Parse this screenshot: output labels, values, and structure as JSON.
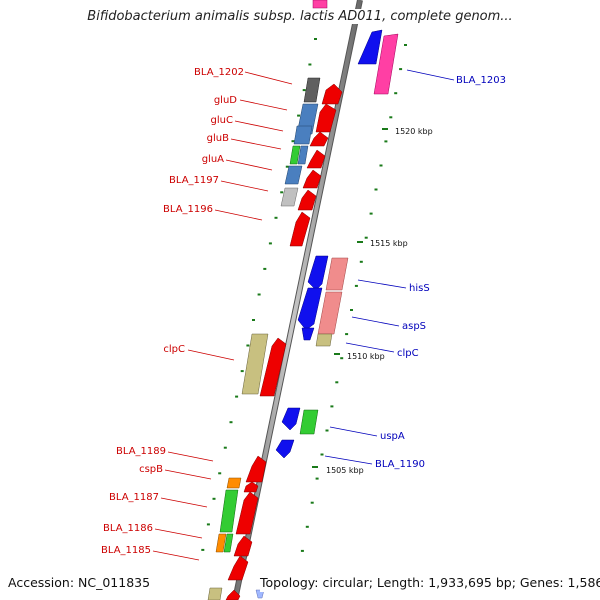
{
  "title": "Bifidobacterium animalis subsp. lactis AD011, complete genom...",
  "footer": {
    "accession": "Accession: NC_011835",
    "topology": "Topology: circular; Length: 1,933,695 bp; Genes: 1,586"
  },
  "colors": {
    "left_label": "#cc0000",
    "right_label": "#0000bb",
    "tick": "#1a7a1a",
    "axis": "#888888"
  },
  "scale_labels": [
    "1520 kbp",
    "1515 kbp",
    "1510 kbp",
    "1505 kbp"
  ],
  "left_labels": [
    "BLA_1202",
    "gluD",
    "gluC",
    "gluB",
    "gluA",
    "BLA_1197",
    "BLA_1196",
    "clpC",
    "BLA_1189",
    "cspB",
    "BLA_1187",
    "BLA_1186",
    "BLA_1185"
  ],
  "right_labels": [
    "BLA_1203",
    "hisS",
    "aspS",
    "clpC",
    "uspA",
    "BLA_1190"
  ]
}
